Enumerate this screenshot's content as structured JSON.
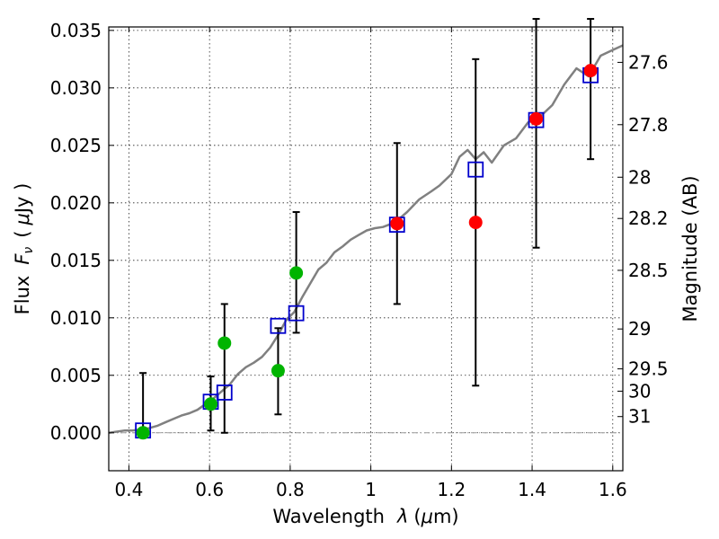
{
  "chart_data": {
    "type": "scatter",
    "xlabel": "Wavelength",
    "xlabel_symbol": "λ",
    "xlabel_unit_open": "(",
    "xlabel_unit_mu": "μ",
    "xlabel_unit_rest": "m)",
    "ylabel": "Flux",
    "ylabel_symbol": "F",
    "ylabel_subscript": "ν",
    "ylabel_unit_open": "(",
    "ylabel_unit_mu": "μ",
    "ylabel_unit_rest": "Jy )",
    "y2label": "Magnitude (AB)",
    "xlim": [
      0.35,
      1.625
    ],
    "ylim": [
      -0.0033,
      0.0353
    ],
    "grid": true,
    "x_ticks": [
      0.4,
      0.6,
      0.8,
      1.0,
      1.2,
      1.4,
      1.6
    ],
    "x_tick_labels": [
      "0.4",
      "0.6",
      "0.8",
      "1",
      "1.2",
      "1.4",
      "1.6"
    ],
    "y_ticks": [
      0.0,
      0.005,
      0.01,
      0.015,
      0.02,
      0.025,
      0.03,
      0.035
    ],
    "y_tick_labels": [
      "0.000",
      "0.005",
      "0.010",
      "0.015",
      "0.020",
      "0.025",
      "0.030",
      "0.035"
    ],
    "y2_ticks": [
      {
        "label": "27.6",
        "flux": 0.03222
      },
      {
        "label": "27.8",
        "flux": 0.0268
      },
      {
        "label": "28",
        "flux": 0.02223
      },
      {
        "label": "28.2",
        "flux": 0.01864
      },
      {
        "label": "28.5",
        "flux": 0.01413
      },
      {
        "label": "29",
        "flux": 0.00903
      },
      {
        "label": "29.5",
        "flux": 0.00556
      },
      {
        "label": "30",
        "flux": 0.00362
      },
      {
        "label": "31",
        "flux": 0.00141
      }
    ],
    "colors": {
      "sed": "#808080",
      "model_box": "#0000cc",
      "green": "#00b400",
      "red": "#ff0000",
      "errorbar": "#000000",
      "zero_line": "#999999"
    },
    "series": [
      {
        "kind": "sed-line",
        "x": [
          0.35,
          0.37,
          0.39,
          0.41,
          0.43,
          0.45,
          0.47,
          0.49,
          0.51,
          0.53,
          0.55,
          0.57,
          0.59,
          0.61,
          0.63,
          0.65,
          0.67,
          0.69,
          0.71,
          0.73,
          0.75,
          0.77,
          0.79,
          0.81,
          0.83,
          0.85,
          0.87,
          0.89,
          0.91,
          0.93,
          0.95,
          0.97,
          0.99,
          1.01,
          1.03,
          1.06,
          1.09,
          1.12,
          1.15,
          1.17,
          1.2,
          1.22,
          1.24,
          1.26,
          1.28,
          1.3,
          1.33,
          1.36,
          1.39,
          1.42,
          1.45,
          1.48,
          1.51,
          1.54,
          1.57,
          1.6,
          1.625
        ],
        "y": [
          0.0,
          0.0001,
          0.0002,
          0.0002,
          0.0003,
          0.0004,
          0.0006,
          0.0009,
          0.0012,
          0.0015,
          0.0017,
          0.002,
          0.0025,
          0.003,
          0.0036,
          0.0042,
          0.0051,
          0.0057,
          0.0061,
          0.0066,
          0.0074,
          0.0085,
          0.0098,
          0.0105,
          0.0118,
          0.013,
          0.0142,
          0.0148,
          0.0157,
          0.0162,
          0.0168,
          0.0172,
          0.0176,
          0.0178,
          0.0179,
          0.0183,
          0.0192,
          0.0203,
          0.021,
          0.0215,
          0.0225,
          0.024,
          0.0246,
          0.0238,
          0.0244,
          0.0235,
          0.025,
          0.0256,
          0.027,
          0.0275,
          0.0285,
          0.0303,
          0.0317,
          0.031,
          0.0328,
          0.0333,
          0.0337
        ]
      },
      {
        "kind": "model-boxes",
        "x": [
          0.435,
          0.603,
          0.637,
          0.77,
          0.815,
          1.065,
          1.26,
          1.41,
          1.545
        ],
        "y": [
          0.0002,
          0.0027,
          0.0035,
          0.0093,
          0.0104,
          0.0181,
          0.0229,
          0.0272,
          0.0311
        ]
      },
      {
        "kind": "green-points",
        "x": [
          0.435,
          0.603,
          0.637,
          0.77,
          0.815
        ],
        "y": [
          0.0,
          0.0025,
          0.0078,
          0.0054,
          0.0139
        ],
        "yerr_low": [
          -0.0003,
          0.0002,
          0.0,
          0.0016,
          0.0087
        ],
        "yerr_high": [
          0.0052,
          0.0049,
          0.0112,
          0.0091,
          0.0192
        ]
      },
      {
        "kind": "red-points",
        "x": [
          1.065,
          1.26,
          1.41,
          1.545
        ],
        "y": [
          0.0182,
          0.0183,
          0.0273,
          0.0315
        ],
        "yerr_low": [
          0.0112,
          0.0041,
          0.0161,
          0.0238
        ],
        "yerr_high": [
          0.0252,
          0.0325,
          0.036,
          0.036
        ]
      }
    ]
  }
}
